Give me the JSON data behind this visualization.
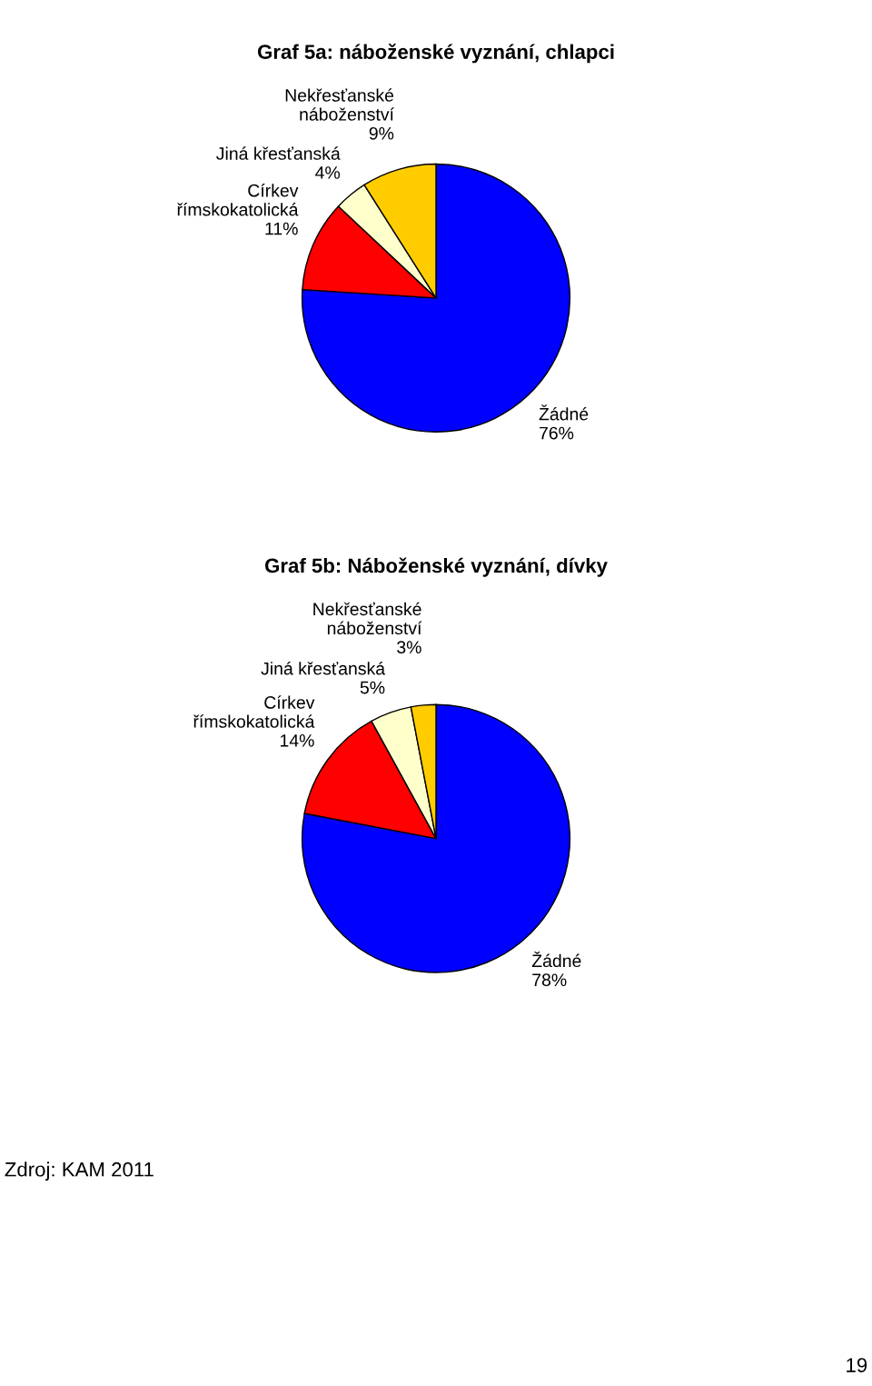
{
  "chart_data": [
    {
      "type": "pie",
      "title": "Graf 5a: náboženské vyznání, chlapci",
      "categories": [
        "Žádné",
        "Církev\nřímskokatolická",
        "Jiná křesťanská",
        "Nekřesťanské\nnáboženství"
      ],
      "values": [
        76,
        11,
        4,
        9
      ],
      "value_labels": [
        "76%",
        "11%",
        "4%",
        "9%"
      ],
      "colors": [
        "#0000ff",
        "#ff0000",
        "#ffffcc",
        "#ffcc00"
      ]
    },
    {
      "type": "pie",
      "title": "Graf 5b: Náboženské vyznání, dívky",
      "categories": [
        "Žádné",
        "Církev\nřímskokatolická",
        "Jiná křesťanská",
        "Nekřesťanské\nnáboženství"
      ],
      "values": [
        78,
        14,
        5,
        3
      ],
      "value_labels": [
        "78%",
        "14%",
        "5%",
        "3%"
      ],
      "colors": [
        "#0000ff",
        "#ff0000",
        "#ffffcc",
        "#ffcc00"
      ],
      "annotations": [
        "Zdroj: KAM 2011",
        "19"
      ]
    }
  ]
}
